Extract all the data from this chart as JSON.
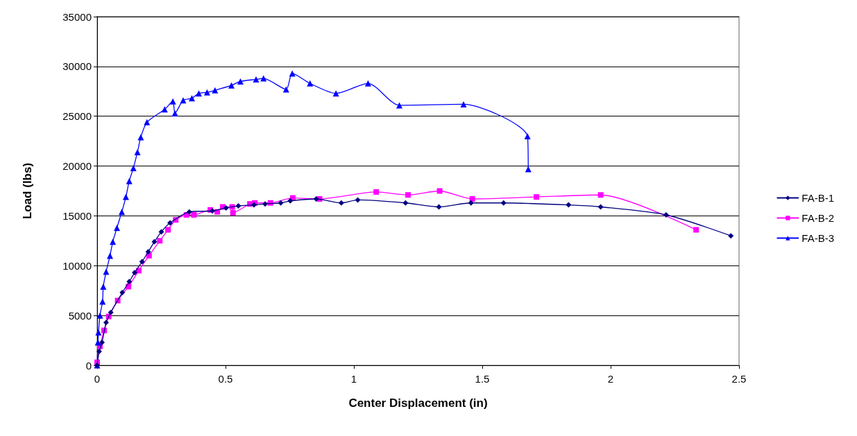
{
  "chart_data": {
    "type": "line",
    "xlabel": "Center Displacement (in)",
    "ylabel": "Load (lbs)",
    "xlim": [
      0,
      2.5
    ],
    "xticks": [
      0,
      0.5,
      1,
      1.5,
      2,
      2.5
    ],
    "ylim": [
      0,
      35000
    ],
    "yticks": [
      0,
      5000,
      10000,
      15000,
      20000,
      25000,
      30000,
      35000
    ],
    "grid": "y",
    "legend": "right",
    "line_style": "solid",
    "series": [
      {
        "name": "FA-B-1",
        "color": "#000080",
        "marker": "diamond",
        "x": [
          0,
          0.008,
          0.019,
          0.035,
          0.053,
          0.098,
          0.125,
          0.146,
          0.175,
          0.199,
          0.223,
          0.25,
          0.284,
          0.359,
          0.449,
          0.502,
          0.55,
          0.611,
          0.654,
          0.715,
          0.752,
          0.853,
          0.951,
          1.015,
          1.201,
          1.331,
          1.456,
          1.583,
          1.836,
          1.961,
          2.216,
          2.468
        ],
        "values": [
          0,
          1400,
          2300,
          4300,
          5300,
          7300,
          8400,
          9300,
          10400,
          11400,
          12400,
          13400,
          14300,
          15400,
          15500,
          15800,
          16000,
          16100,
          16200,
          16300,
          16500,
          16700,
          16300,
          16600,
          16300,
          15900,
          16300,
          16300,
          16100,
          15900,
          15100,
          13000
        ]
      },
      {
        "name": "FA-B-2",
        "color": "#ff00ff",
        "marker": "square",
        "x": [
          0,
          0.011,
          0.027,
          0.045,
          0.08,
          0.122,
          0.162,
          0.202,
          0.244,
          0.276,
          0.306,
          0.348,
          0.377,
          0.441,
          0.468,
          0.489,
          0.526,
          0.529,
          0.595,
          0.614,
          0.675,
          0.762,
          0.866,
          1.087,
          1.211,
          1.334,
          1.461,
          1.711,
          1.961,
          2.333
        ],
        "values": [
          300,
          1900,
          3500,
          4900,
          6500,
          7900,
          9500,
          11000,
          12500,
          13600,
          14600,
          15100,
          15100,
          15600,
          15400,
          15900,
          15900,
          15300,
          16200,
          16300,
          16300,
          16800,
          16700,
          17400,
          17100,
          17500,
          16700,
          16900,
          17100,
          13600
        ]
      },
      {
        "name": "FA-B-3",
        "color": "#0000ff",
        "marker": "triangle",
        "x": [
          0,
          0.003,
          0.005,
          0.011,
          0.021,
          0.024,
          0.035,
          0.05,
          0.061,
          0.077,
          0.096,
          0.112,
          0.125,
          0.141,
          0.157,
          0.17,
          0.194,
          0.263,
          0.295,
          0.303,
          0.335,
          0.369,
          0.396,
          0.428,
          0.459,
          0.523,
          0.558,
          0.619,
          0.648,
          0.736,
          0.76,
          0.829,
          0.93,
          1.055,
          1.177,
          1.427,
          1.676,
          1.679
        ],
        "values": [
          0,
          2300,
          3300,
          5000,
          6400,
          7900,
          9400,
          11000,
          12400,
          13800,
          15400,
          16900,
          18500,
          19800,
          21400,
          22900,
          24400,
          25700,
          26500,
          25300,
          26600,
          26800,
          27300,
          27400,
          27600,
          28100,
          28500,
          28700,
          28800,
          27700,
          29300,
          28300,
          27300,
          28300,
          26100,
          26200,
          23000,
          19700
        ]
      }
    ]
  }
}
